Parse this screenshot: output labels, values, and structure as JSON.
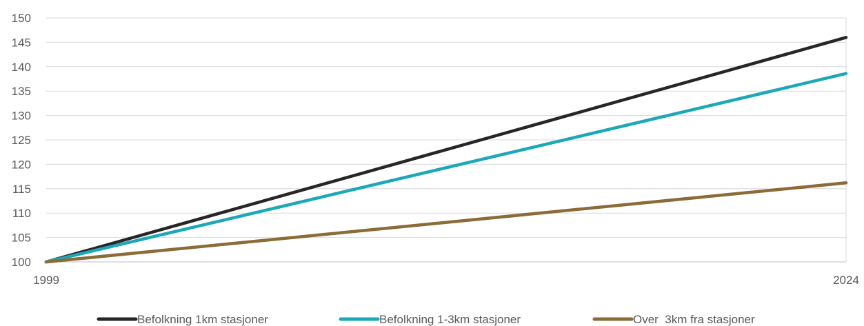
{
  "chart_data": {
    "type": "line",
    "title": "",
    "xlabel": "",
    "ylabel": "",
    "x": [
      "1999",
      "2024"
    ],
    "ylim": [
      100,
      150
    ],
    "yticks": [
      100,
      105,
      110,
      115,
      120,
      125,
      130,
      135,
      140,
      145,
      150
    ],
    "grid": true,
    "legend_position": "bottom",
    "series": [
      {
        "name": "Befolkning 1km stasjoner",
        "values": [
          100,
          146
        ],
        "color": "#262626"
      },
      {
        "name": "Befolkning 1-3km stasjoner",
        "values": [
          100,
          138.6
        ],
        "color": "#1BA8B8"
      },
      {
        "name": "Over  3km fra stasjoner",
        "values": [
          100,
          116.2
        ],
        "color": "#8B6B36"
      }
    ]
  }
}
